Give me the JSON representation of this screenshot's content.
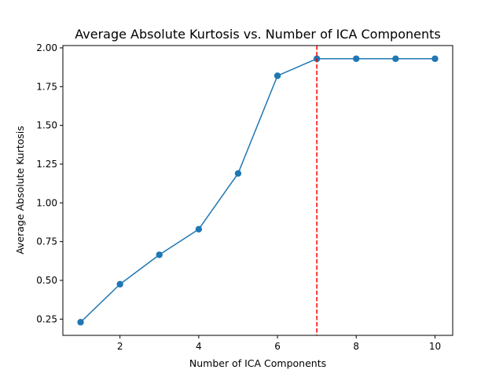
{
  "chart_data": {
    "type": "line",
    "title": "Average Absolute Kurtosis vs. Number of ICA Components",
    "xlabel": "Number of ICA Components",
    "ylabel": "Average Absolute Kurtosis",
    "xlim": [
      0.55,
      10.45
    ],
    "ylim": [
      0.145,
      2.015
    ],
    "xticks": [
      2,
      4,
      6,
      8,
      10
    ],
    "yticks": [
      0.25,
      0.5,
      0.75,
      1.0,
      1.25,
      1.5,
      1.75,
      2.0
    ],
    "xtick_labels": [
      "2",
      "4",
      "6",
      "8",
      "10"
    ],
    "ytick_labels": [
      "0.25",
      "0.50",
      "0.75",
      "1.00",
      "1.25",
      "1.50",
      "1.75",
      "2.00"
    ],
    "series": [
      {
        "x": [
          1,
          2,
          3,
          4,
          5,
          6,
          7,
          8,
          9,
          10
        ],
        "y": [
          0.23,
          0.475,
          0.665,
          0.83,
          1.19,
          1.82,
          1.93,
          1.93,
          1.93,
          1.93
        ],
        "color": "#1f77b4",
        "marker": "circle"
      }
    ],
    "reference_line": {
      "orientation": "vertical",
      "x": 7,
      "color": "#ff0000",
      "style": "dashed"
    },
    "grid": false
  }
}
